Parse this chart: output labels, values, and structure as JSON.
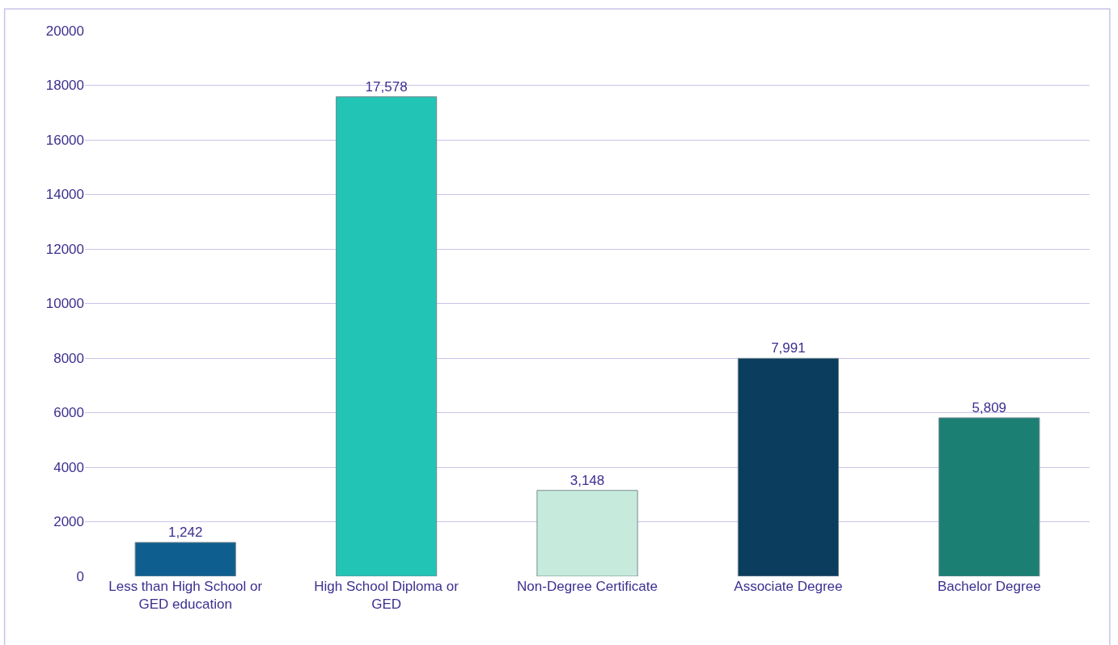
{
  "chart_data": {
    "type": "bar",
    "categories": [
      "Less than High School or GED education",
      "High School Diploma or GED",
      "Non-Degree Certificate",
      "Associate Degree",
      "Bachelor Degree"
    ],
    "values": [
      1242,
      17578,
      3148,
      7991,
      5809
    ],
    "colors": [
      "#0e5f8f",
      "#22c4b6",
      "#c6ebdc",
      "#0b3d5e",
      "#1b7f74"
    ],
    "ylim": [
      0,
      20000
    ],
    "yticks": [
      0,
      2000,
      4000,
      6000,
      8000,
      10000,
      12000,
      14000,
      16000,
      18000,
      20000
    ],
    "value_labels": [
      "1,242",
      "17,578",
      "3,148",
      "7,991",
      "5,809"
    ],
    "grid": "y"
  }
}
